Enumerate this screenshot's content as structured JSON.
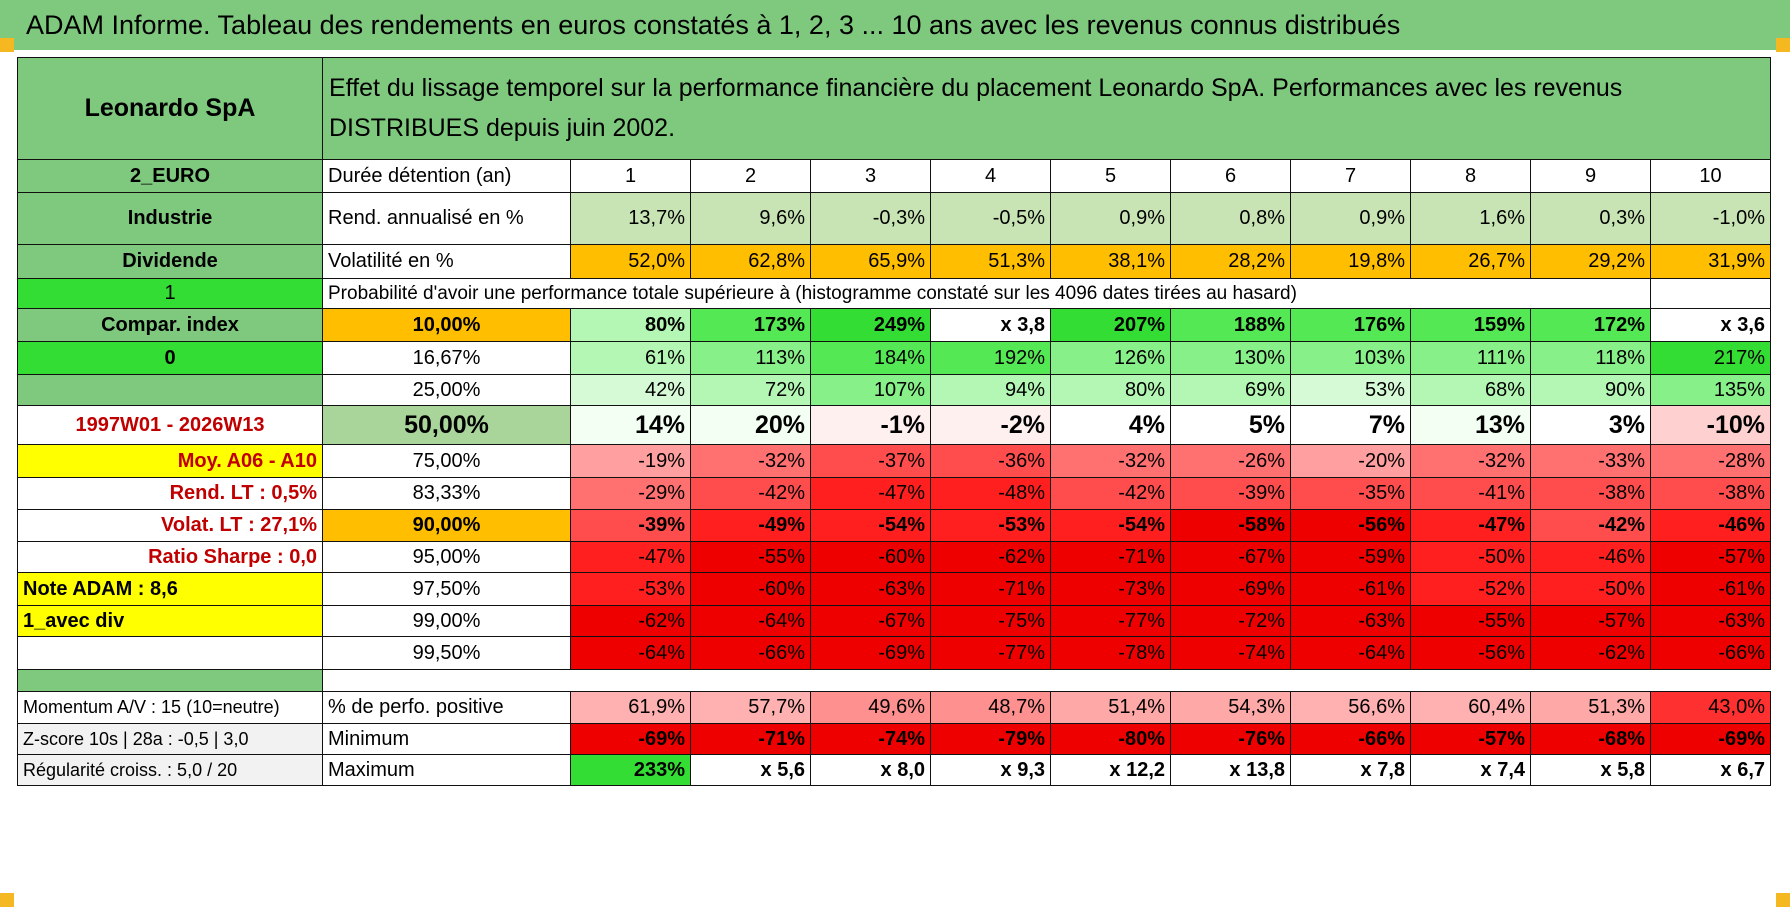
{
  "title": "ADAM Informe. Tableau des rendements en euros constatés à 1, 2, 3 ... 10 ans avec les revenus connus distribués",
  "header": {
    "name": "Leonardo SpA",
    "description": "Effet du lissage temporel sur la performance financière du placement Leonardo SpA. Performances avec les revenus DISTRIBUES depuis juin 2002."
  },
  "left_labels": {
    "currency": "2_EURO",
    "sector": "Industrie",
    "income": "Dividende",
    "code1": "1",
    "compar": "Compar. index",
    "code0": "0",
    "period": "1997W01 - 2026W13",
    "moy": "Moy. A06 - A10",
    "rend_lt": "Rend. LT :   0,5%",
    "volat_lt": "Volat. LT :   27,1%",
    "sharpe": "Ratio Sharpe :    0,0",
    "note": "Note ADAM : 8,6",
    "avec_div": "1_avec div",
    "momentum": "Momentum A/V : 15 (10=neutre)",
    "zscore": "Z-score 10s | 28a : -0,5 | 3,0",
    "regularite": "Régularité croiss. : 5,0 / 20"
  },
  "row_labels": {
    "duree": "Durée détention (an)",
    "rend": "Rend. annualisé en %",
    "vol": "Volatilité en %",
    "proba": "Probabilité d'avoir une performance totale supérieure à (histogramme constaté sur les 4096 dates tirées au hasard)",
    "pos": "% de perfo. positive",
    "min": "Minimum",
    "max": "Maximum"
  },
  "years": [
    "1",
    "2",
    "3",
    "4",
    "5",
    "6",
    "7",
    "8",
    "9",
    "10"
  ],
  "rend": [
    "13,7%",
    "9,6%",
    "-0,3%",
    "-0,5%",
    "0,9%",
    "0,8%",
    "0,9%",
    "1,6%",
    "0,3%",
    "-1,0%"
  ],
  "vol": [
    "52,0%",
    "62,8%",
    "65,9%",
    "51,3%",
    "38,1%",
    "28,2%",
    "19,8%",
    "26,7%",
    "29,2%",
    "31,9%"
  ],
  "quantiles": [
    {
      "p": "10,00%",
      "v": [
        "80%",
        "173%",
        "249%",
        "x 3,8",
        "207%",
        "188%",
        "176%",
        "159%",
        "172%",
        "x 3,6"
      ]
    },
    {
      "p": "16,67%",
      "v": [
        "61%",
        "113%",
        "184%",
        "192%",
        "126%",
        "130%",
        "103%",
        "111%",
        "118%",
        "217%"
      ]
    },
    {
      "p": "25,00%",
      "v": [
        "42%",
        "72%",
        "107%",
        "94%",
        "80%",
        "69%",
        "53%",
        "68%",
        "90%",
        "135%"
      ]
    },
    {
      "p": "50,00%",
      "v": [
        "14%",
        "20%",
        "-1%",
        "-2%",
        "4%",
        "5%",
        "7%",
        "13%",
        "3%",
        "-10%"
      ]
    },
    {
      "p": "75,00%",
      "v": [
        "-19%",
        "-32%",
        "-37%",
        "-36%",
        "-32%",
        "-26%",
        "-20%",
        "-32%",
        "-33%",
        "-28%"
      ]
    },
    {
      "p": "83,33%",
      "v": [
        "-29%",
        "-42%",
        "-47%",
        "-48%",
        "-42%",
        "-39%",
        "-35%",
        "-41%",
        "-38%",
        "-38%"
      ]
    },
    {
      "p": "90,00%",
      "v": [
        "-39%",
        "-49%",
        "-54%",
        "-53%",
        "-54%",
        "-58%",
        "-56%",
        "-47%",
        "-42%",
        "-46%"
      ]
    },
    {
      "p": "95,00%",
      "v": [
        "-47%",
        "-55%",
        "-60%",
        "-62%",
        "-71%",
        "-67%",
        "-59%",
        "-50%",
        "-46%",
        "-57%"
      ]
    },
    {
      "p": "97,50%",
      "v": [
        "-53%",
        "-60%",
        "-63%",
        "-71%",
        "-73%",
        "-69%",
        "-61%",
        "-52%",
        "-50%",
        "-61%"
      ]
    },
    {
      "p": "99,00%",
      "v": [
        "-62%",
        "-64%",
        "-67%",
        "-75%",
        "-77%",
        "-72%",
        "-63%",
        "-55%",
        "-57%",
        "-63%"
      ]
    },
    {
      "p": "99,50%",
      "v": [
        "-64%",
        "-66%",
        "-69%",
        "-77%",
        "-78%",
        "-74%",
        "-64%",
        "-56%",
        "-62%",
        "-66%"
      ]
    }
  ],
  "pos": [
    "61,9%",
    "57,7%",
    "49,6%",
    "48,7%",
    "51,4%",
    "54,3%",
    "56,6%",
    "60,4%",
    "51,3%",
    "43,0%"
  ],
  "min": [
    "-69%",
    "-71%",
    "-74%",
    "-79%",
    "-80%",
    "-76%",
    "-66%",
    "-57%",
    "-68%",
    "-69%"
  ],
  "max": [
    "233%",
    "x 5,6",
    "x 8,0",
    "x 9,3",
    "x 12,2",
    "x 13,8",
    "x 7,8",
    "x 7,4",
    "x 5,8",
    "x 6,7"
  ],
  "colors": {
    "header_green": "#7fc97f",
    "bright_green": "#33dd33",
    "orange": "#ffbf00",
    "yellow": "#ffff00",
    "label_red": "#c00000"
  }
}
